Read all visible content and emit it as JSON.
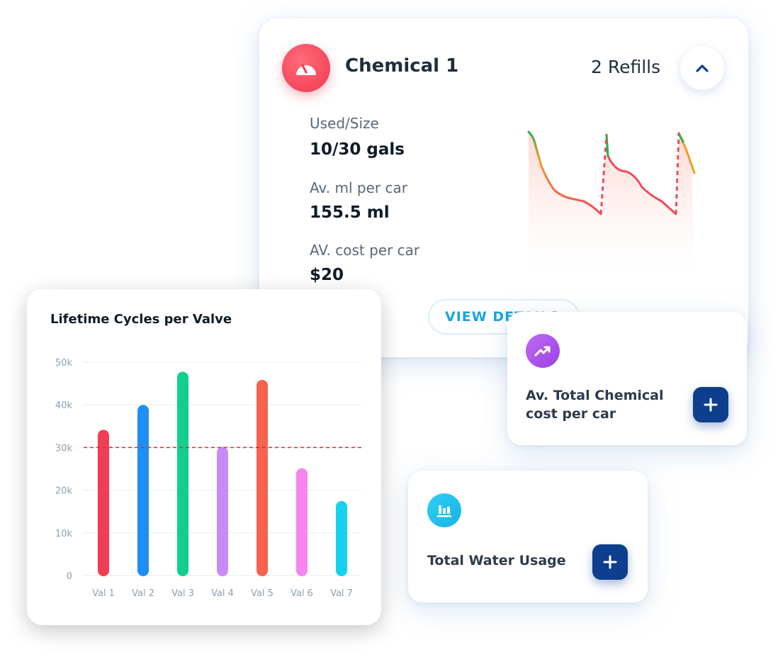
{
  "chemical_card": {
    "title": "Chemical 1",
    "refills": "2 Refills",
    "stats": [
      {
        "label": "Used/Size",
        "value": "10/30 gals"
      },
      {
        "label": "Av. ml per car",
        "value": "155.5 ml"
      },
      {
        "label": "AV. cost per car",
        "value": "$20"
      }
    ],
    "view_details_label": "VIEW DETAILS",
    "icon": "gauge-icon",
    "collapse_icon": "chevron-up-icon",
    "accent_color": "#f0384f"
  },
  "lifetime_chart": {
    "title": "Lifetime Cycles per Valve"
  },
  "chart_data": {
    "type": "bar",
    "title": "Lifetime Cycles per Valve",
    "categories": [
      "Val 1",
      "Val 2",
      "Val 3",
      "Val 4",
      "Val 5",
      "Val 6",
      "Val 7"
    ],
    "values": [
      34000,
      39800,
      47600,
      30000,
      45700,
      25000,
      17300
    ],
    "colors": [
      "#f23d56",
      "#1e8ef3",
      "#12cf8e",
      "#c98af5",
      "#f6634f",
      "#f784f0",
      "#17d2ee"
    ],
    "y_ticks": [
      "0",
      "10k",
      "20k",
      "30k",
      "40k",
      "50k"
    ],
    "ylim": [
      0,
      50000
    ],
    "threshold": 30000,
    "threshold_color": "#e8262e",
    "grid": true
  },
  "av_chem_card": {
    "label": "Av. Total Chemical cost per car",
    "icon": "trending-up-icon",
    "button_icon": "plus-icon"
  },
  "water_card": {
    "label": "Total Water Usage",
    "icon": "bar-chart-icon",
    "button_icon": "plus-icon"
  }
}
